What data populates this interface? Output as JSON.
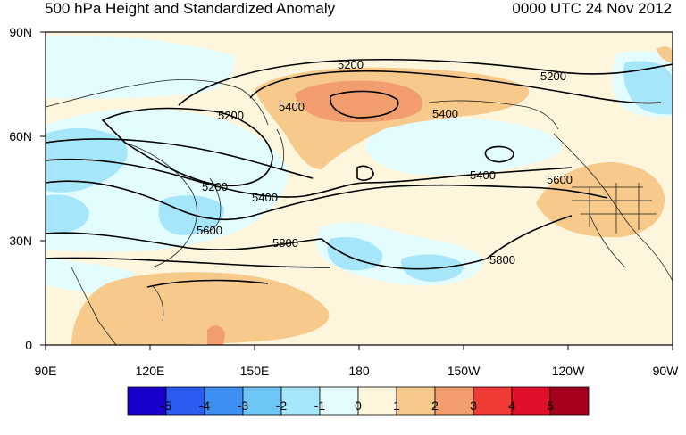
{
  "title": "500 hPa Height and Standardized Anomaly",
  "time": "0000 UTC 24 Nov 2012",
  "lat_labels": [
    "90N",
    "60N",
    "30N",
    "0"
  ],
  "lon_labels": [
    "90E",
    "120E",
    "150E",
    "180",
    "150W",
    "120W",
    "90W"
  ],
  "contour_labels": [
    {
      "label": "5200"
    },
    {
      "label": "5200"
    },
    {
      "label": "5200"
    },
    {
      "label": "5200"
    },
    {
      "label": "5400"
    },
    {
      "label": "5400"
    },
    {
      "label": "5400"
    },
    {
      "label": "5400"
    },
    {
      "label": "5600"
    },
    {
      "label": "5600"
    },
    {
      "label": "5800"
    },
    {
      "label": "5800"
    }
  ],
  "colorbar": {
    "ticks": [
      "-5",
      "-4",
      "-3",
      "-2",
      "-1",
      "0",
      "1",
      "2",
      "3",
      "4",
      "5"
    ],
    "colors": [
      "#1a00cc",
      "#2b5cf0",
      "#3c8ef0",
      "#6dc6f5",
      "#a6e6fb",
      "#e3fcfe",
      "#fdf6dc",
      "#f7c98a",
      "#f29e6c",
      "#f03b37",
      "#e0102a",
      "#a5001e"
    ]
  },
  "colors": {
    "background": "#fdf6dc",
    "land_outline": "#222222",
    "contour": "#000000"
  }
}
